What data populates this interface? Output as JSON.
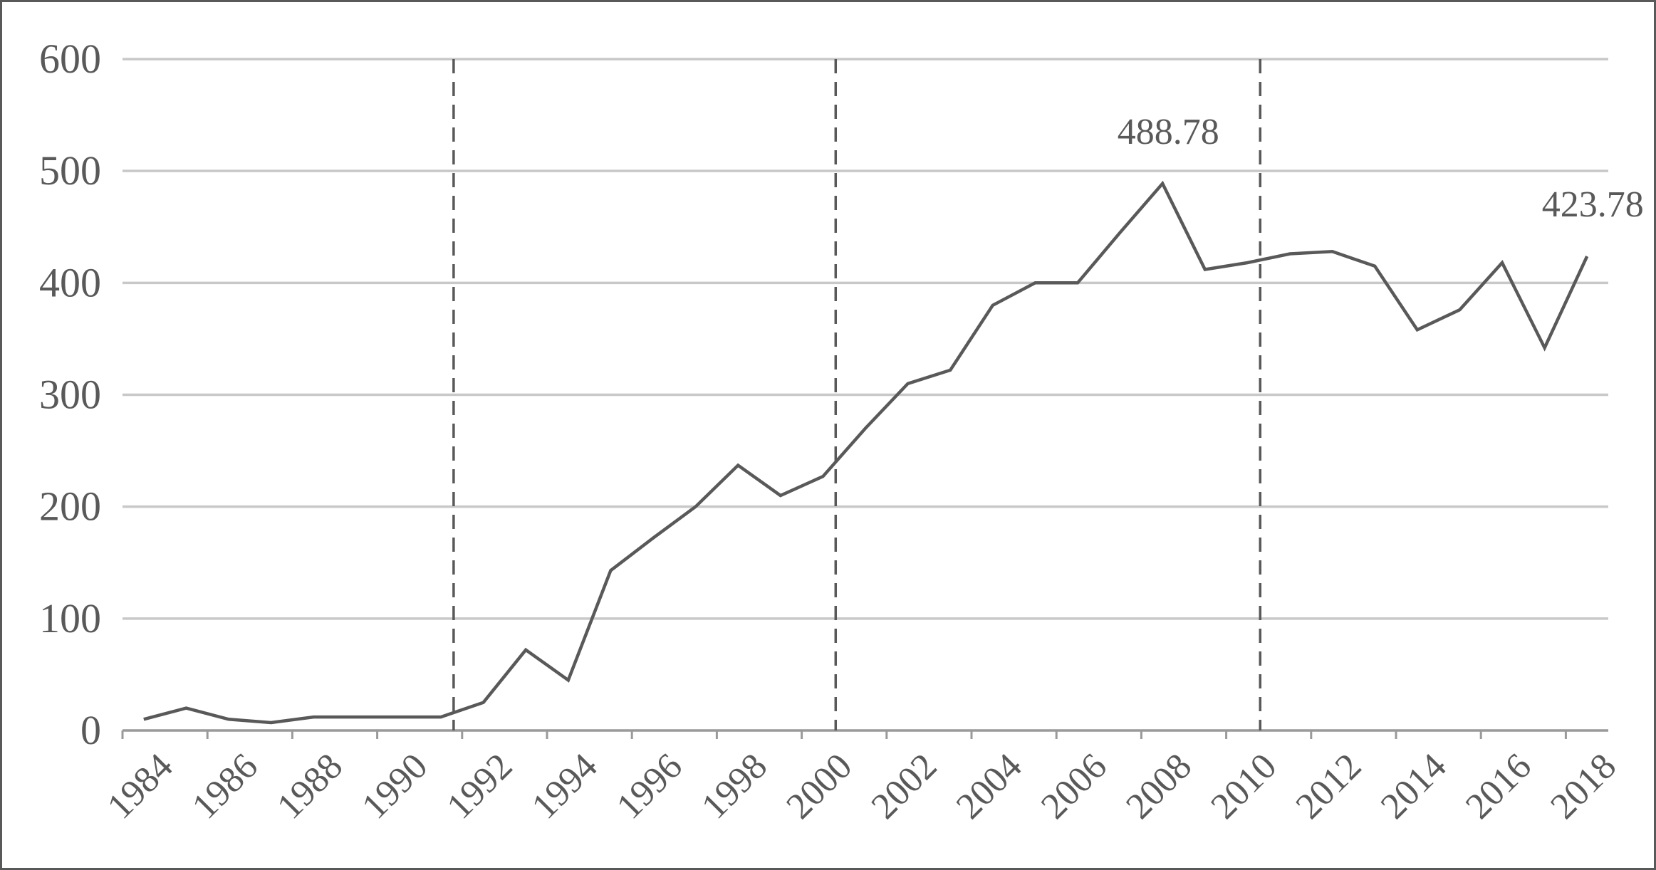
{
  "chart_data": {
    "type": "line",
    "title": "",
    "xlabel": "",
    "ylabel": "",
    "ylim": [
      0,
      600
    ],
    "yticks": [
      0,
      100,
      200,
      300,
      400,
      500,
      600
    ],
    "xtick_labels": [
      "1984",
      "1986",
      "1988",
      "1990",
      "1992",
      "1994",
      "1996",
      "1998",
      "2000",
      "2002",
      "2004",
      "2006",
      "2008",
      "2010",
      "2012",
      "2014",
      "2016",
      "2018"
    ],
    "grid": true,
    "legend": "none",
    "x": [
      1984,
      1985,
      1986,
      1987,
      1988,
      1989,
      1990,
      1991,
      1992,
      1993,
      1994,
      1995,
      1996,
      1997,
      1998,
      1999,
      2000,
      2001,
      2002,
      2003,
      2004,
      2005,
      2006,
      2007,
      2008,
      2009,
      2010,
      2011,
      2012,
      2013,
      2014,
      2015,
      2016,
      2017,
      2018
    ],
    "series": [
      {
        "values": [
          10,
          20,
          10,
          7,
          12,
          12,
          12,
          12,
          25,
          72,
          45,
          143,
          172,
          200,
          237,
          210,
          227,
          270,
          310,
          322,
          380,
          400,
          400,
          445,
          488.78,
          412,
          418,
          426,
          428,
          415,
          358,
          376,
          418,
          342,
          423.78
        ]
      }
    ],
    "reference_lines_x": [
      1991,
      2000,
      2010
    ],
    "annotations": [
      {
        "text": "488.78",
        "x": 2008,
        "y": 488.78
      },
      {
        "text": "423.78",
        "x": 2018,
        "y": 423.78
      }
    ],
    "colors": {
      "line": "#595959",
      "grid": "#c8c8c8",
      "axis": "#9a9a9a",
      "reference": "#595959",
      "text": "#595959"
    }
  }
}
